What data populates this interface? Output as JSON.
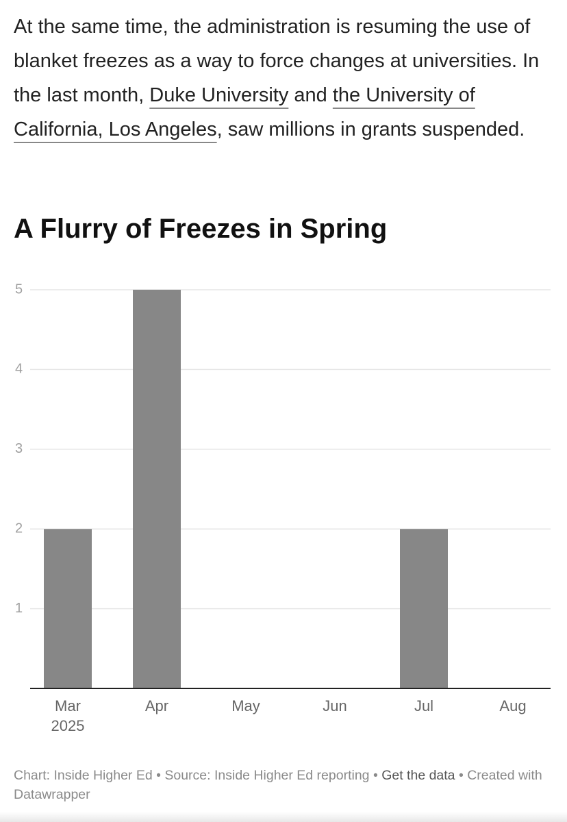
{
  "article": {
    "segments": [
      {
        "text": "At the same time, the administration is resuming the use of blanket freezes as a way to force changes at universities. In the last month, "
      },
      {
        "text": "Duke University",
        "link": true
      },
      {
        "text": " and "
      },
      {
        "text": "the University of California, Los Angeles",
        "link": true
      },
      {
        "text": ", saw millions in grants suspended."
      }
    ]
  },
  "chart_data": {
    "type": "bar",
    "title": "A Flurry of Freezes in Spring",
    "categories": [
      "Mar 2025",
      "Apr",
      "May",
      "Jun",
      "Jul",
      "Aug"
    ],
    "values": [
      2,
      5,
      0,
      0,
      2,
      0
    ],
    "color": "#878787",
    "ylim": [
      0,
      5
    ],
    "yticks": [
      1,
      2,
      3,
      4,
      5
    ],
    "grid": true
  },
  "footer": {
    "chart_by": "Chart: Inside Higher Ed",
    "source": "Source: Inside Higher Ed reporting",
    "get_data": "Get the data",
    "created": "Created with Datawrapper"
  }
}
